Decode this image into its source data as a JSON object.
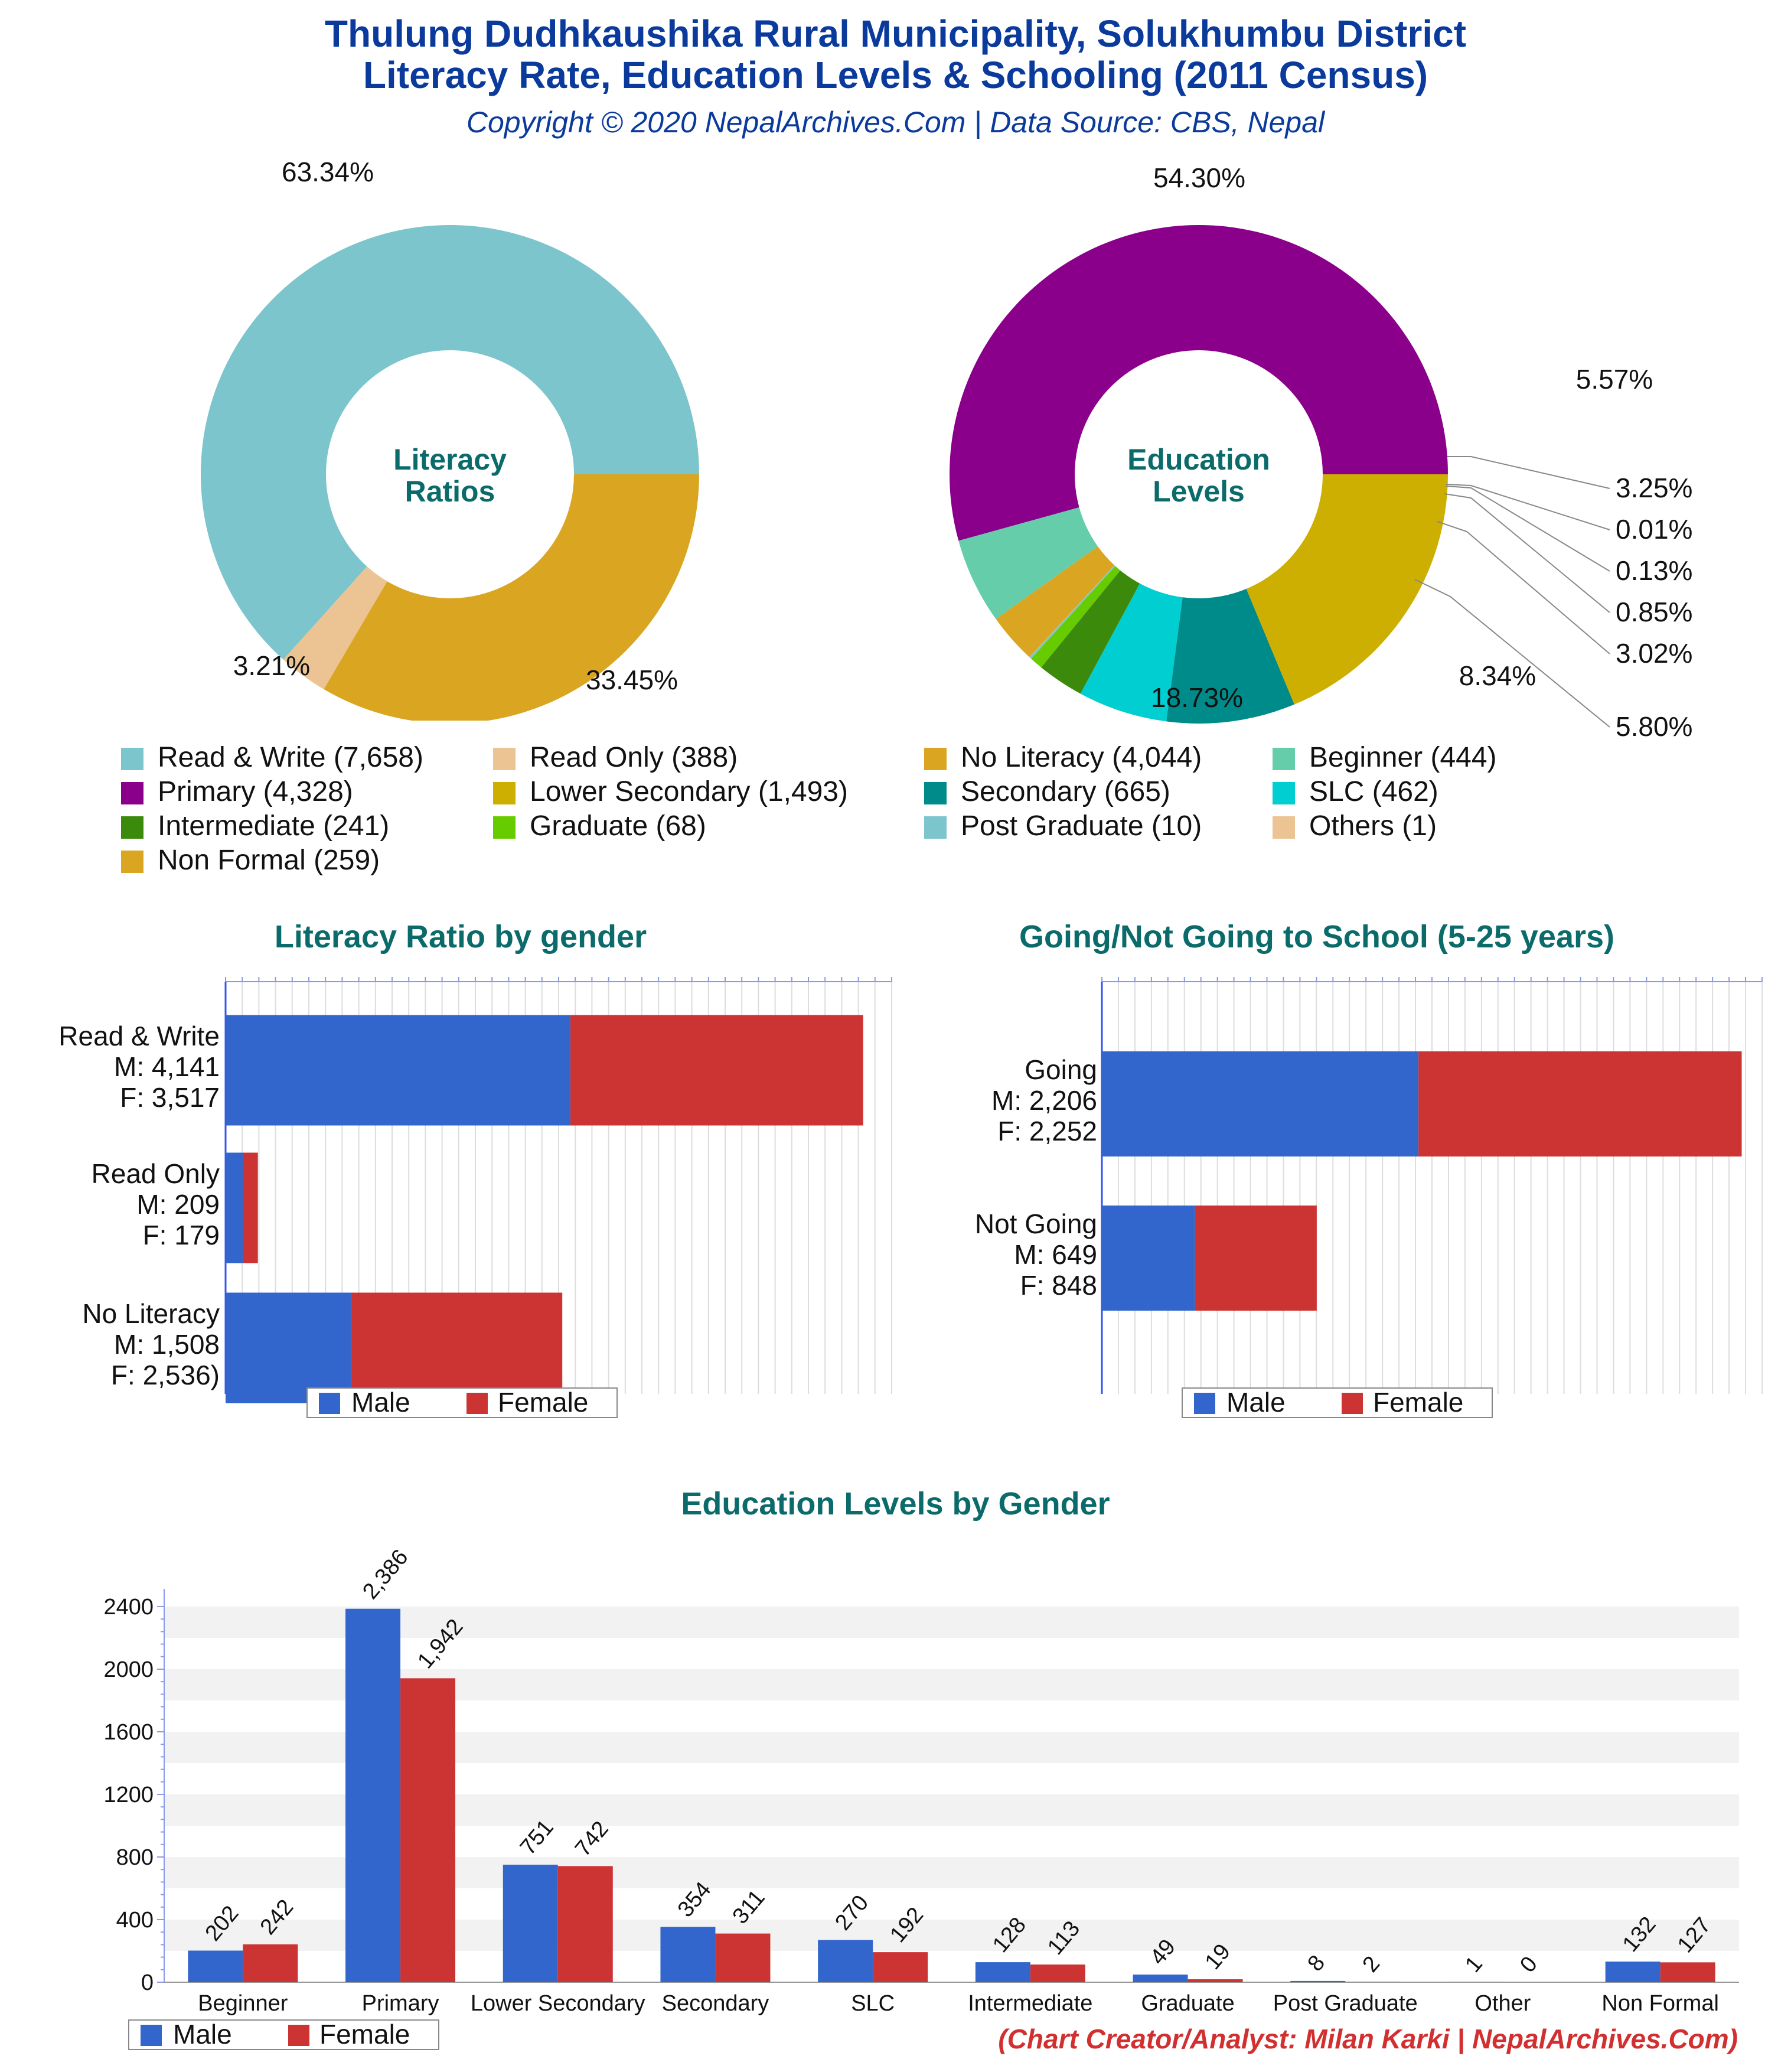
{
  "header": {
    "title_line1": "Thulung Dudhkaushika Rural Municipality, Solukhumbu District",
    "title_line2": "Literacy Rate, Education Levels & Schooling (2011 Census)",
    "subtitle": "Copyright © 2020 NepalArchives.Com | Data Source: CBS, Nepal"
  },
  "footer": "(Chart Creator/Analyst: Milan Karki | NepalArchives.Com)",
  "chart_data": [
    {
      "type": "pie",
      "title": "Literacy Ratios",
      "center_label": [
        "Literacy",
        "Ratios"
      ],
      "slices": [
        {
          "label": "Read & Write",
          "value": 7658,
          "percent_label": "63.34%",
          "color": "#7cc5cc"
        },
        {
          "label": "Read Only",
          "value": 388,
          "percent_label": "3.21%",
          "color": "#ecc493"
        },
        {
          "label": "No Literacy",
          "value": 4044,
          "percent_label": "33.45%",
          "color": "#daa520"
        }
      ]
    },
    {
      "type": "pie",
      "title": "Education Levels",
      "center_label": [
        "Education",
        "Levels"
      ],
      "slices": [
        {
          "label": "Primary",
          "value": 4328,
          "percent_label": "54.30%",
          "color": "#8b008b"
        },
        {
          "label": "Beginner",
          "value": 444,
          "percent_label": "5.57%",
          "color": "#66cdaa"
        },
        {
          "label": "Non Formal",
          "value": 259,
          "percent_label": "3.25%",
          "color": "#daa520"
        },
        {
          "label": "Others",
          "value": 1,
          "percent_label": "0.01%",
          "color": "#ecc493"
        },
        {
          "label": "Post Graduate",
          "value": 10,
          "percent_label": "0.13%",
          "color": "#7cc5cc"
        },
        {
          "label": "Graduate",
          "value": 68,
          "percent_label": "0.85%",
          "color": "#66cc00"
        },
        {
          "label": "Intermediate",
          "value": 241,
          "percent_label": "3.02%",
          "color": "#3c8a0c"
        },
        {
          "label": "SLC",
          "value": 462,
          "percent_label": "5.80%",
          "color": "#00ced1"
        },
        {
          "label": "Secondary",
          "value": 665,
          "percent_label": "8.34%",
          "color": "#008b8b"
        },
        {
          "label": "Lower Secondary",
          "value": 1493,
          "percent_label": "18.73%",
          "color": "#ccaf00"
        }
      ]
    },
    {
      "type": "bar",
      "orientation": "horizontal",
      "stacked": true,
      "title": "Literacy Ratio by gender",
      "categories": [
        {
          "lines": [
            "Read & Write",
            "M: 4,141",
            "F: 3,517"
          ]
        },
        {
          "lines": [
            "Read Only",
            "M: 209",
            "F: 179"
          ]
        },
        {
          "lines": [
            "No Literacy",
            "M: 1,508",
            "F: 2,536)"
          ]
        }
      ],
      "series": [
        {
          "name": "Male",
          "values": [
            4141,
            209,
            1508
          ],
          "color": "#3366cc"
        },
        {
          "name": "Female",
          "values": [
            3517,
            179,
            2536
          ],
          "color": "#cc3333"
        }
      ],
      "xlim": [
        0,
        8000
      ]
    },
    {
      "type": "bar",
      "orientation": "horizontal",
      "stacked": true,
      "title": "Going/Not Going to School (5-25 years)",
      "categories": [
        {
          "lines": [
            "Going",
            "M: 2,206",
            "F: 2,252"
          ]
        },
        {
          "lines": [
            "Not Going",
            "M: 649",
            "F: 848"
          ]
        }
      ],
      "series": [
        {
          "name": "Male",
          "values": [
            2206,
            649
          ],
          "color": "#3366cc"
        },
        {
          "name": "Female",
          "values": [
            2252,
            848
          ],
          "color": "#cc3333"
        }
      ],
      "xlim": [
        0,
        4600
      ]
    },
    {
      "type": "bar",
      "title": "Education Levels by Gender",
      "categories": [
        "Beginner",
        "Primary",
        "Lower Secondary",
        "Secondary",
        "SLC",
        "Intermediate",
        "Graduate",
        "Post Graduate",
        "Other",
        "Non Formal"
      ],
      "series": [
        {
          "name": "Male",
          "values": [
            202,
            2386,
            751,
            354,
            270,
            128,
            49,
            8,
            1,
            132
          ],
          "labels": [
            "202",
            "2,386",
            "751",
            "354",
            "270",
            "128",
            "49",
            "8",
            "1",
            "132"
          ],
          "color": "#3366cc"
        },
        {
          "name": "Female",
          "values": [
            242,
            1942,
            742,
            311,
            192,
            113,
            19,
            2,
            0,
            127
          ],
          "labels": [
            "242",
            "1,942",
            "742",
            "311",
            "192",
            "113",
            "19",
            "2",
            "0",
            "127"
          ],
          "color": "#cc3333"
        }
      ],
      "yticks": [
        "0",
        "400",
        "800",
        "1200",
        "1600",
        "2000",
        "2400"
      ],
      "ylim": [
        0,
        2400
      ]
    }
  ],
  "pie_legend": [
    {
      "label": "Read & Write (7,658)",
      "color": "#7cc5cc"
    },
    {
      "label": "Read Only (388)",
      "color": "#ecc493"
    },
    {
      "label": "No Literacy (4,044)",
      "color": "#daa520"
    },
    {
      "label": "Beginner (444)",
      "color": "#66cdaa"
    },
    {
      "label": "Primary (4,328)",
      "color": "#8b008b"
    },
    {
      "label": "Lower Secondary (1,493)",
      "color": "#ccaf00"
    },
    {
      "label": "Secondary (665)",
      "color": "#008b8b"
    },
    {
      "label": "SLC (462)",
      "color": "#00ced1"
    },
    {
      "label": "Intermediate (241)",
      "color": "#3c8a0c"
    },
    {
      "label": "Graduate (68)",
      "color": "#66cc00"
    },
    {
      "label": "Post Graduate (10)",
      "color": "#7cc5cc"
    },
    {
      "label": "Others (1)",
      "color": "#ecc493"
    },
    {
      "label": "Non Formal (259)",
      "color": "#daa520"
    }
  ],
  "gender_legend": {
    "male": "Male",
    "female": "Female",
    "male_color": "#3366cc",
    "female_color": "#cc3333"
  }
}
